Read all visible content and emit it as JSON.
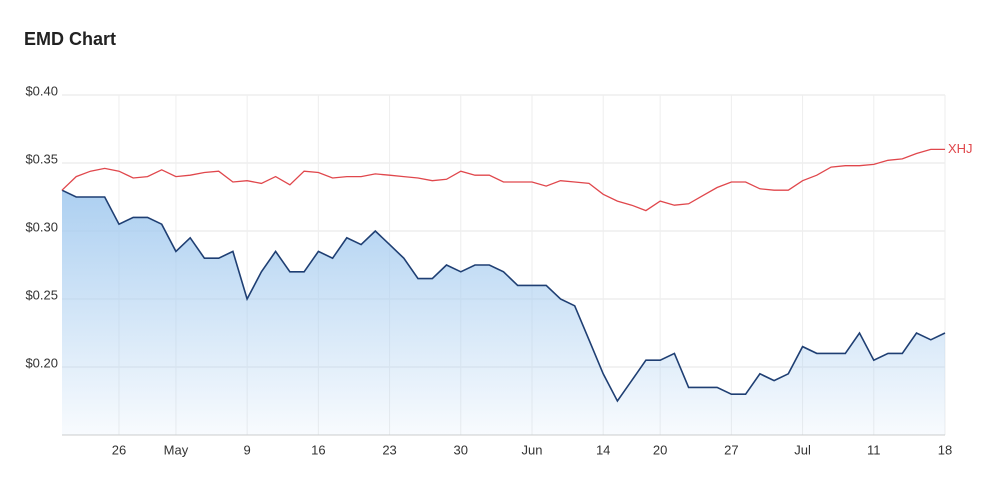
{
  "chart_data": {
    "type": "line",
    "title": "EMD Chart",
    "categories": [
      null,
      null,
      null,
      null,
      "26",
      null,
      null,
      null,
      "May",
      null,
      null,
      null,
      null,
      "9",
      null,
      null,
      null,
      null,
      "16",
      null,
      null,
      null,
      null,
      "23",
      null,
      null,
      null,
      null,
      "30",
      null,
      null,
      null,
      null,
      "Jun",
      null,
      null,
      null,
      null,
      "14",
      null,
      null,
      null,
      "20",
      null,
      null,
      null,
      null,
      "27",
      null,
      null,
      null,
      null,
      "Jul",
      null,
      null,
      null,
      null,
      "11",
      null,
      null,
      null,
      null,
      "18"
    ],
    "series": [
      {
        "color": "#1f3f73",
        "fill": "#a8cdf0",
        "values": [
          0.33,
          0.325,
          0.325,
          0.325,
          0.305,
          0.31,
          0.31,
          0.305,
          0.285,
          0.295,
          0.28,
          0.28,
          0.285,
          0.25,
          0.27,
          0.285,
          0.27,
          0.27,
          0.285,
          0.28,
          0.295,
          0.29,
          0.3,
          0.29,
          0.28,
          0.265,
          0.265,
          0.275,
          0.27,
          0.275,
          0.275,
          0.27,
          0.26,
          0.26,
          0.26,
          0.25,
          0.245,
          0.22,
          0.195,
          0.175,
          0.19,
          0.205,
          0.205,
          0.21,
          0.185,
          0.185,
          0.185,
          0.18,
          0.18,
          0.195,
          0.19,
          0.195,
          0.215,
          0.21,
          0.21,
          0.21,
          0.225,
          0.205,
          0.21,
          0.21,
          0.225,
          0.22,
          0.225
        ]
      },
      {
        "name": "XHJ",
        "color": "#e0474c",
        "values": [
          0.33,
          0.34,
          0.344,
          0.346,
          0.344,
          0.339,
          0.34,
          0.345,
          0.34,
          0.341,
          0.343,
          0.344,
          0.336,
          0.337,
          0.335,
          0.34,
          0.334,
          0.344,
          0.343,
          0.339,
          0.34,
          0.34,
          0.342,
          0.341,
          0.34,
          0.339,
          0.337,
          0.338,
          0.344,
          0.341,
          0.341,
          0.336,
          0.336,
          0.336,
          0.333,
          0.337,
          0.336,
          0.335,
          0.327,
          0.322,
          0.319,
          0.315,
          0.322,
          0.319,
          0.32,
          0.326,
          0.332,
          0.336,
          0.336,
          0.331,
          0.33,
          0.33,
          0.337,
          0.341,
          0.347,
          0.348,
          0.348,
          0.349,
          0.352,
          0.353,
          0.357,
          0.36,
          0.36
        ]
      }
    ],
    "ylim": [
      0.15,
      0.4
    ],
    "yticks": [
      {
        "value": 0.2,
        "label": "$0.20"
      },
      {
        "value": 0.25,
        "label": "$0.25"
      },
      {
        "value": 0.3,
        "label": "$0.30"
      },
      {
        "value": 0.35,
        "label": "$0.35"
      },
      {
        "value": 0.4,
        "label": "$0.40"
      }
    ],
    "grid": true
  }
}
